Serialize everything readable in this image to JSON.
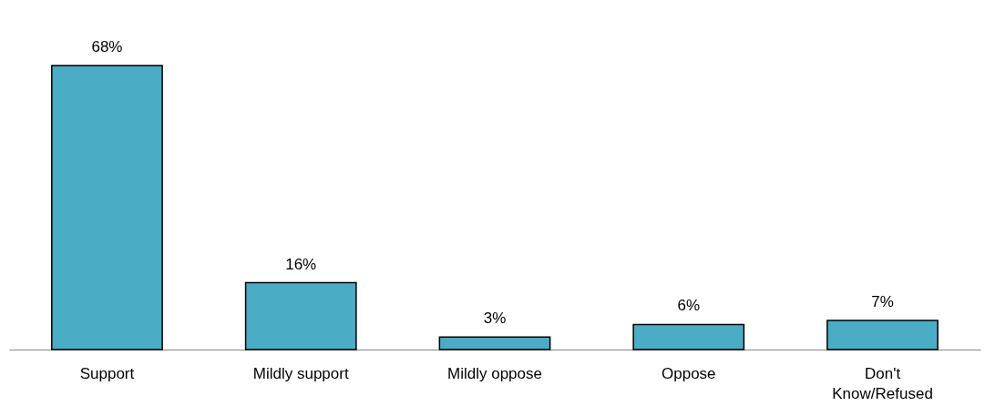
{
  "chart_data": {
    "type": "bar",
    "categories": [
      "Support",
      "Mildly support",
      "Mildly oppose",
      "Oppose",
      "Don't Know/Refused"
    ],
    "values": [
      68,
      16,
      3,
      6,
      7
    ],
    "value_labels": [
      "68%",
      "16%",
      "3%",
      "6%",
      "7%"
    ],
    "color": "#4bacc6"
  }
}
